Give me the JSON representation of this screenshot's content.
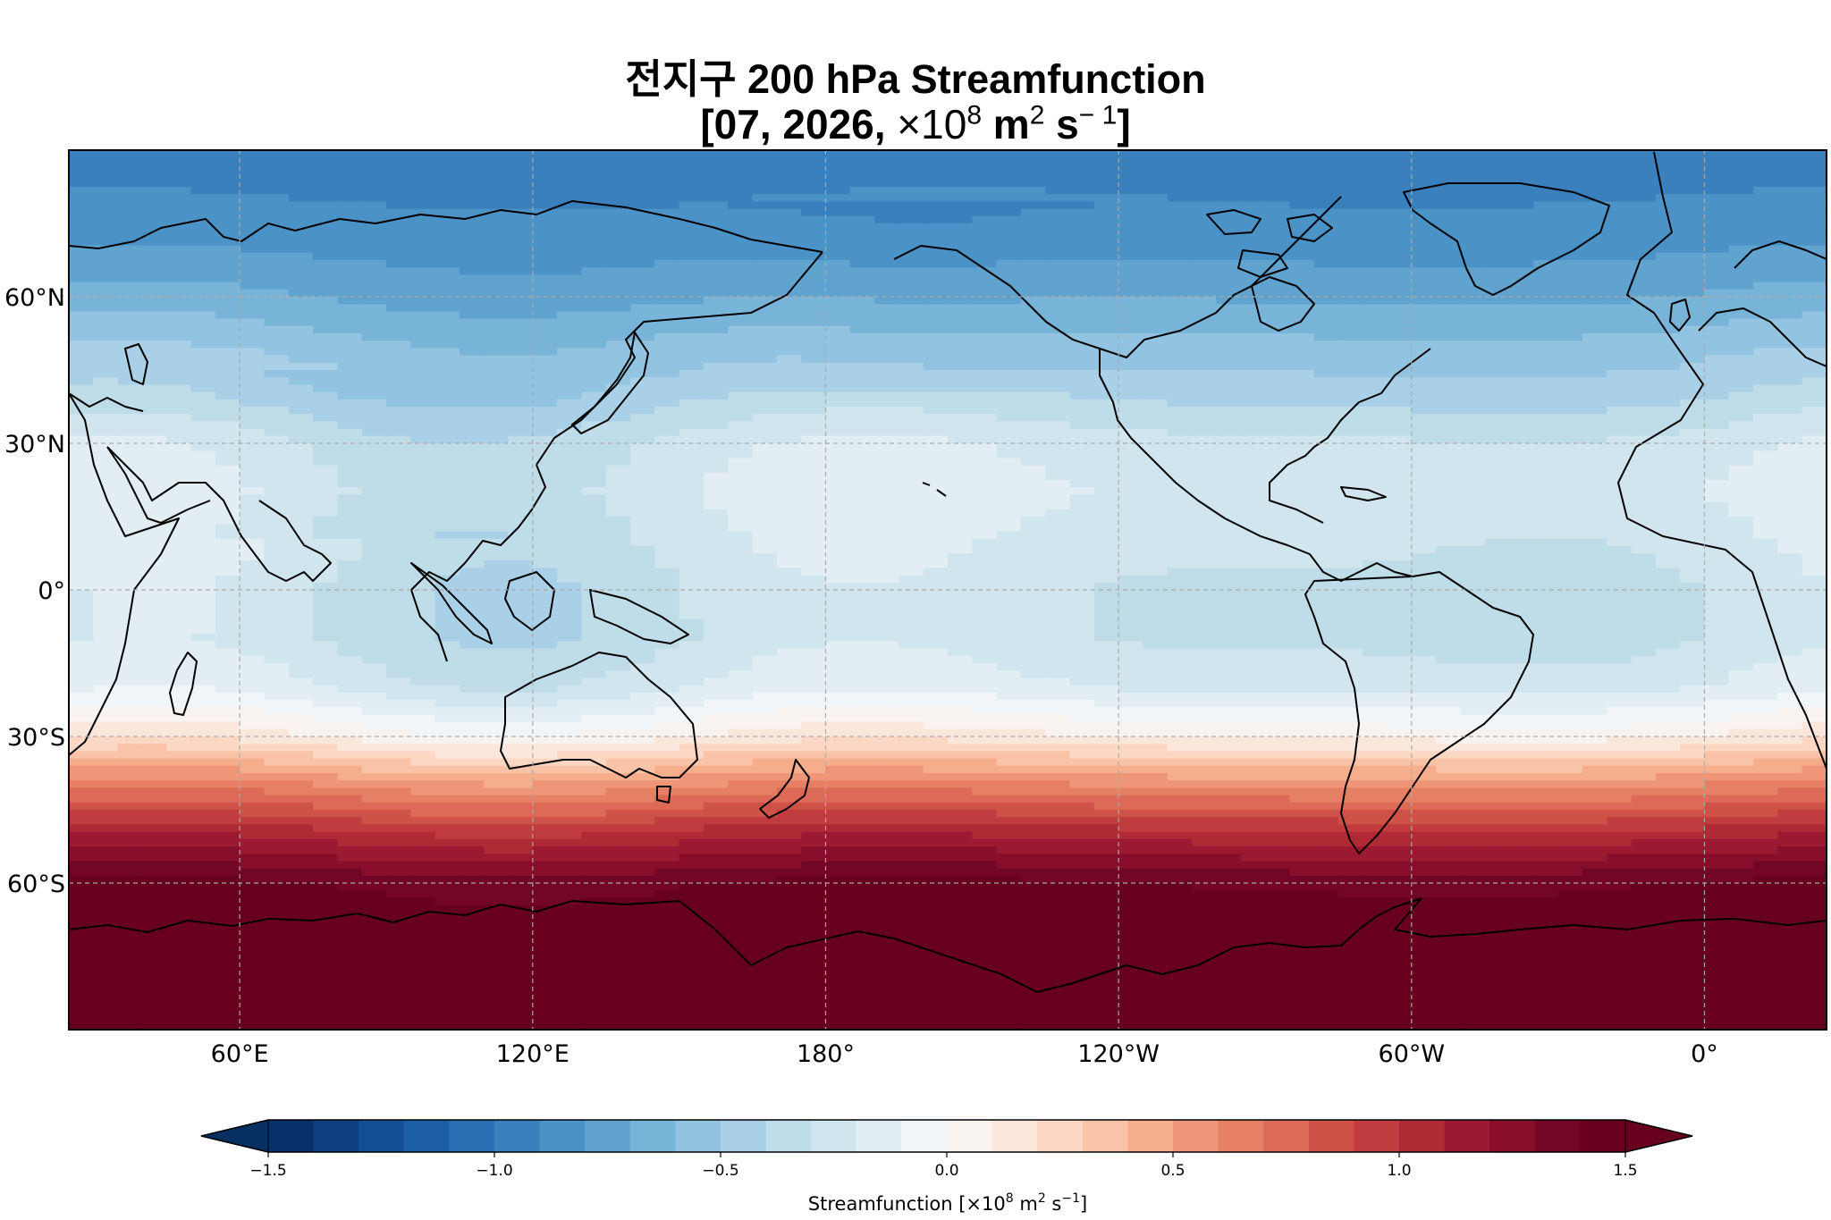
{
  "title_line1": "전지구 200 hPa Streamfunction",
  "title_line2_pre": "[07, 2026, ",
  "title_line2_mid": "×10",
  "title_line2_exp8": "8",
  "title_line2_m": " m",
  "title_line2_exp2": "2",
  "title_line2_s": " s",
  "title_line2_exp": "− 1",
  "title_line2_post": "]",
  "map": {
    "projection": "PlateCarree",
    "central_longitude": "~150°E",
    "lon_ticks": [
      "60°E",
      "120°E",
      "180°",
      "120°W",
      "60°W",
      "0°"
    ],
    "lat_ticks": [
      "60°N",
      "30°N",
      "0°",
      "30°S",
      "60°S"
    ],
    "gridlines": true,
    "coastlines": true,
    "extent": {
      "lon_min": 25,
      "lon_max": 385,
      "lat_min": -90,
      "lat_max": 90
    }
  },
  "colorbar": {
    "cmap": "RdBu_r",
    "orientation": "horizontal",
    "extend": "both",
    "tick_labels": [
      "-1.5",
      "-1.0",
      "-0.5",
      "0.0",
      "0.5",
      "1.0",
      "1.5"
    ],
    "levels_min": -1.5,
    "levels_max": 1.5,
    "n_bins": 30,
    "label_pre": "Streamfunction [×10",
    "label_exp8": "8",
    "label_m": " m",
    "label_exp2": "2",
    "label_s": " s",
    "label_expm1": "−1",
    "label_post": "]"
  },
  "chart_data": {
    "type": "heatmap",
    "variable": "200 hPa streamfunction",
    "units": "×10^8 m^2 s^-1",
    "zonal_mean_profile": {
      "lat": [
        90,
        80,
        70,
        60,
        50,
        40,
        30,
        20,
        10,
        0,
        -10,
        -20,
        -30,
        -40,
        -50,
        -60,
        -70,
        -80,
        -90
      ],
      "value": [
        -0.95,
        -0.9,
        -0.82,
        -0.7,
        -0.55,
        -0.42,
        -0.25,
        -0.2,
        -0.25,
        -0.3,
        -0.3,
        -0.2,
        0.1,
        0.6,
        1.05,
        1.4,
        1.5,
        1.55,
        1.6
      ]
    },
    "vmin": -1.5,
    "vmax": 1.5
  }
}
